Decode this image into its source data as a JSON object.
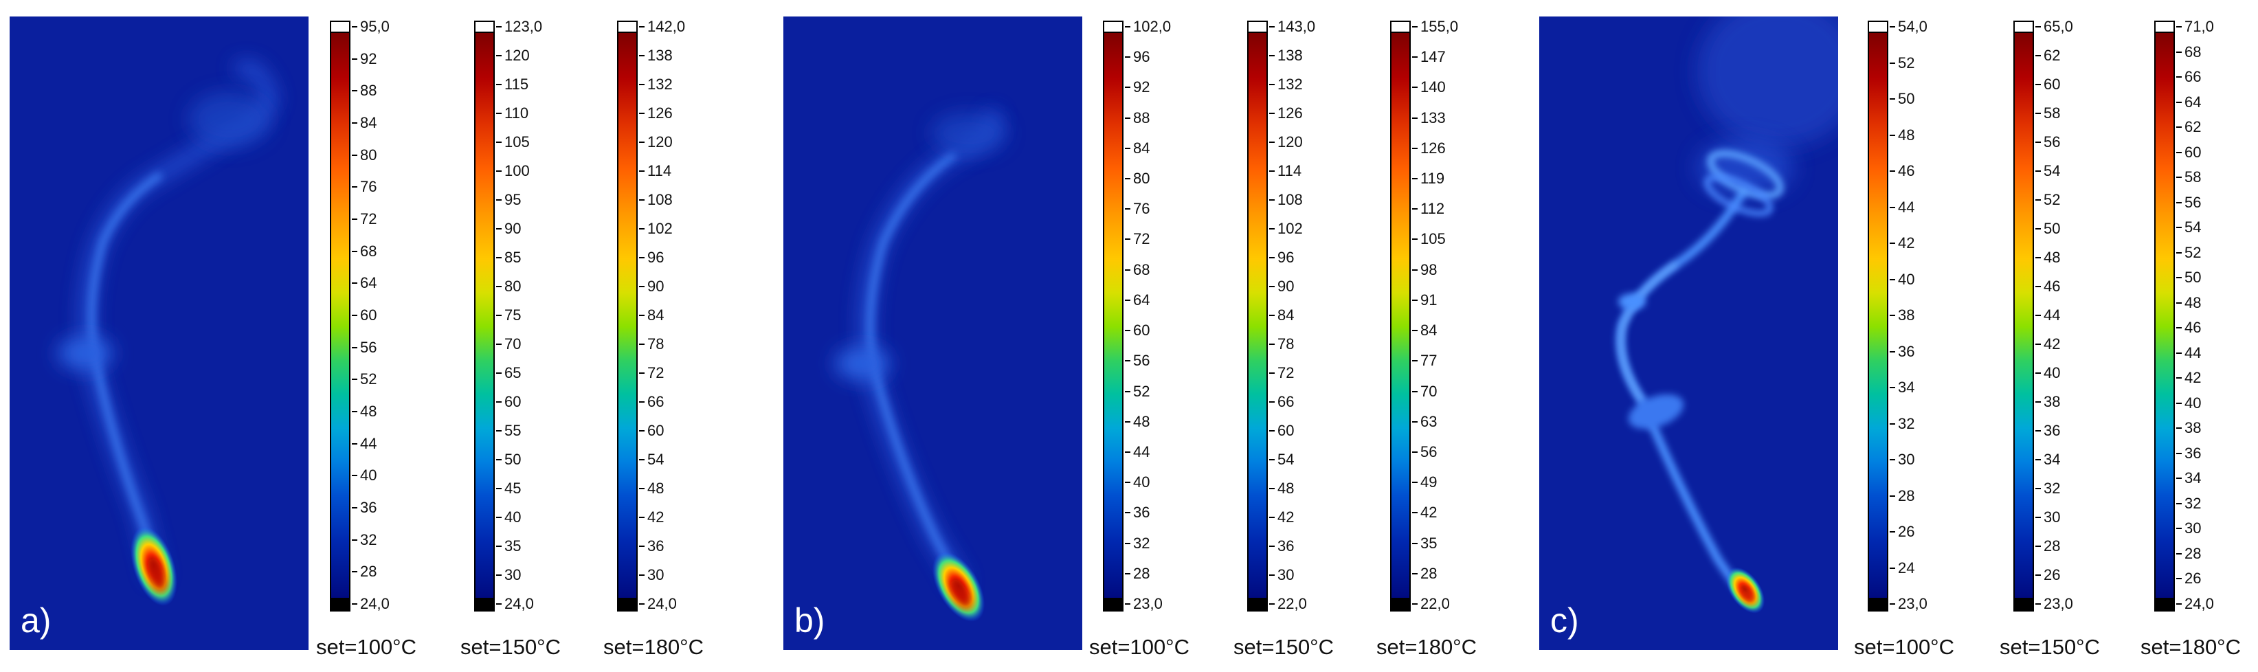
{
  "panels": [
    {
      "letter": "a)",
      "image_name": "thermal-image-a",
      "scales": [
        {
          "ticks": [
            "95,0",
            "92",
            "88",
            "84",
            "80",
            "76",
            "72",
            "68",
            "64",
            "60",
            "56",
            "52",
            "48",
            "44",
            "40",
            "36",
            "32",
            "28",
            "24,0"
          ],
          "set_label": "set=100°C"
        },
        {
          "ticks": [
            "123,0",
            "120",
            "115",
            "110",
            "105",
            "100",
            "95",
            "90",
            "85",
            "80",
            "75",
            "70",
            "65",
            "60",
            "55",
            "50",
            "45",
            "40",
            "35",
            "30",
            "24,0"
          ],
          "set_label": "set=150°C"
        },
        {
          "ticks": [
            "142,0",
            "138",
            "132",
            "126",
            "120",
            "114",
            "108",
            "102",
            "96",
            "90",
            "84",
            "78",
            "72",
            "66",
            "60",
            "54",
            "48",
            "42",
            "36",
            "30",
            "24,0"
          ],
          "set_label": "set=180°C"
        }
      ]
    },
    {
      "letter": "b)",
      "image_name": "thermal-image-b",
      "scales": [
        {
          "ticks": [
            "102,0",
            "96",
            "92",
            "88",
            "84",
            "80",
            "76",
            "72",
            "68",
            "64",
            "60",
            "56",
            "52",
            "48",
            "44",
            "40",
            "36",
            "32",
            "28",
            "23,0"
          ],
          "set_label": "set=100°C"
        },
        {
          "ticks": [
            "143,0",
            "138",
            "132",
            "126",
            "120",
            "114",
            "108",
            "102",
            "96",
            "90",
            "84",
            "78",
            "72",
            "66",
            "60",
            "54",
            "48",
            "42",
            "36",
            "30",
            "22,0"
          ],
          "set_label": "set=150°C"
        },
        {
          "ticks": [
            "155,0",
            "147",
            "140",
            "133",
            "126",
            "119",
            "112",
            "105",
            "98",
            "91",
            "84",
            "77",
            "70",
            "63",
            "56",
            "49",
            "42",
            "35",
            "28",
            "22,0"
          ],
          "set_label": "set=180°C"
        }
      ]
    },
    {
      "letter": "c)",
      "image_name": "thermal-image-c",
      "scales": [
        {
          "ticks": [
            "54,0",
            "52",
            "50",
            "48",
            "46",
            "44",
            "42",
            "40",
            "38",
            "36",
            "34",
            "32",
            "30",
            "28",
            "26",
            "24",
            "23,0"
          ],
          "set_label": "set=100°C"
        },
        {
          "ticks": [
            "65,0",
            "62",
            "60",
            "58",
            "56",
            "54",
            "52",
            "50",
            "48",
            "46",
            "44",
            "42",
            "40",
            "38",
            "36",
            "34",
            "32",
            "30",
            "28",
            "26",
            "23,0"
          ],
          "set_label": "set=150°C"
        },
        {
          "ticks": [
            "71,0",
            "68",
            "66",
            "64",
            "62",
            "60",
            "58",
            "56",
            "54",
            "52",
            "50",
            "48",
            "46",
            "44",
            "42",
            "40",
            "38",
            "36",
            "34",
            "32",
            "30",
            "28",
            "26",
            "24,0"
          ],
          "set_label": "set=180°C"
        }
      ]
    }
  ],
  "colors": {
    "thermal_background": "#0a1f9e",
    "hot_spot": "#ff3000",
    "scale_top": "#7f0000",
    "scale_bottom": "#000a80"
  }
}
